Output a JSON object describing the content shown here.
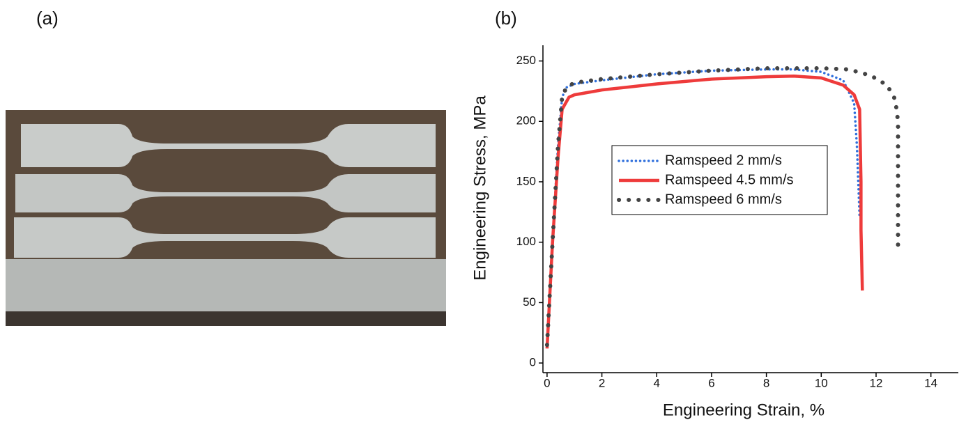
{
  "panel_labels": [
    "(a)",
    "(b)"
  ],
  "chart_data": {
    "type": "line",
    "x_label": "Engineering Strain, %",
    "y_label": "Engineering Stress, MPa",
    "xlim": [
      -0.15,
      15
    ],
    "ylim": [
      -8,
      263
    ],
    "xticks": [
      0,
      2,
      4,
      6,
      8,
      10,
      12,
      14
    ],
    "yticks": [
      0,
      50,
      100,
      150,
      200,
      250
    ],
    "grid": false,
    "legend": "center",
    "series": [
      {
        "name": "Ramspeed 2 mm/s",
        "color": "#2f6fdc",
        "linestyle": "dotted",
        "x": [
          0,
          0.2,
          0.4,
          0.55,
          0.7,
          1,
          2,
          4,
          6,
          8,
          9,
          10,
          10.8,
          11.2,
          11.3,
          11.35,
          11.4
        ],
        "values": [
          15,
          100,
          180,
          220,
          228,
          231,
          234,
          239,
          242,
          243,
          243,
          241,
          234,
          215,
          180,
          150,
          120
        ]
      },
      {
        "name": "Ramspeed 4.5 mm/s",
        "color": "#ee3b3b",
        "linestyle": "solid",
        "x": [
          0,
          0.2,
          0.4,
          0.55,
          0.8,
          1,
          2,
          4,
          6,
          8,
          9,
          10,
          10.8,
          11.2,
          11.4,
          11.45,
          11.45,
          11.5
        ],
        "values": [
          12,
          100,
          170,
          210,
          220,
          222,
          226,
          231,
          235,
          237,
          237.5,
          236,
          230,
          222,
          210,
          150,
          110,
          60
        ]
      },
      {
        "name": "Ramspeed 6 mm/s",
        "color": "#444444",
        "linestyle": "dashed",
        "x": [
          0,
          0.2,
          0.4,
          0.55,
          0.7,
          1,
          2,
          4,
          6,
          8,
          10,
          11,
          11.8,
          12.4,
          12.7,
          12.8,
          12.8,
          12.8,
          12.8
        ],
        "values": [
          15,
          100,
          180,
          220,
          228,
          232,
          235,
          239,
          242,
          244,
          244,
          243,
          238,
          230,
          218,
          200,
          160,
          120,
          90
        ]
      }
    ]
  }
}
